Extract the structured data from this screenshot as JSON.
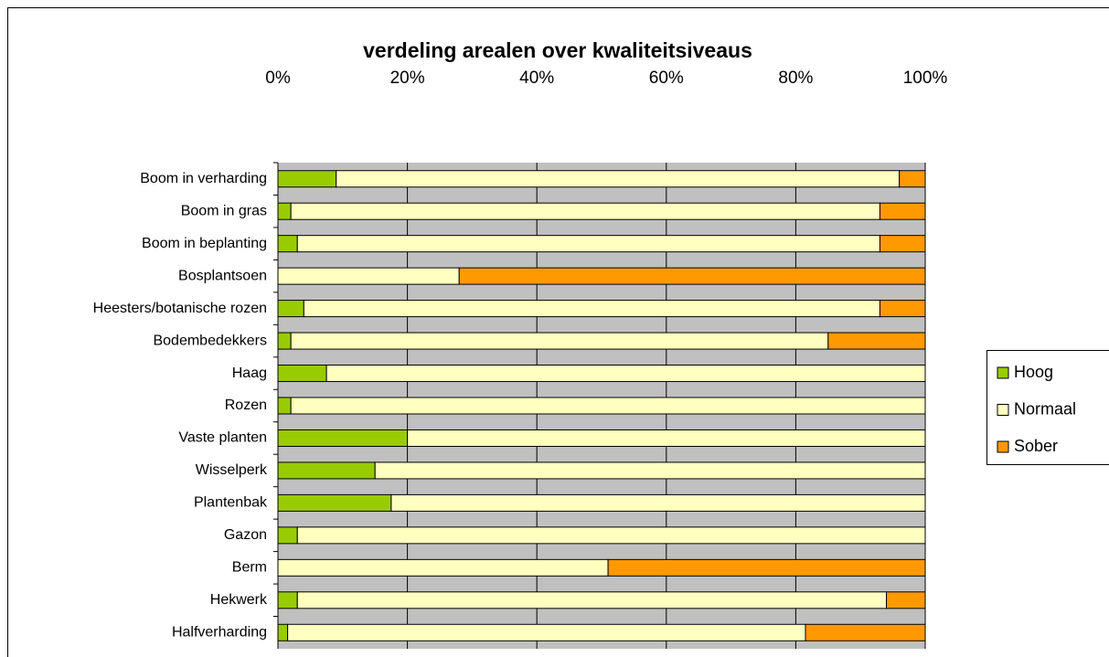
{
  "chart_data": {
    "type": "bar",
    "orientation": "horizontal",
    "stacked": true,
    "title": "verdeling arealen over kwaliteitsiveaus",
    "categories": [
      "Boom in verharding",
      "Boom in gras",
      "Boom in beplanting",
      "Bosplantsoen",
      "Heesters/botanische rozen",
      "Bodembedekkers",
      "Haag",
      "Rozen",
      "Vaste planten",
      "Wisselperk",
      "Plantenbak",
      "Gazon",
      "Berm",
      "Hekwerk",
      "Halfverharding"
    ],
    "series": [
      {
        "name": "Hoog",
        "color": "#99cc00",
        "values": [
          9,
          2,
          3,
          0,
          4,
          2,
          7.5,
          2,
          20,
          15,
          17.5,
          3,
          0,
          3,
          1.5
        ]
      },
      {
        "name": "Normaal",
        "color": "#ffffc0",
        "values": [
          87,
          91,
          90,
          28,
          89,
          83,
          92.5,
          98,
          80,
          85,
          82.5,
          97,
          51,
          91,
          80
        ]
      },
      {
        "name": "Sober",
        "color": "#ff9900",
        "values": [
          4,
          7,
          7,
          72,
          7,
          15,
          0,
          0,
          0,
          0,
          0,
          0,
          49,
          6,
          18.5
        ]
      }
    ],
    "xlim": [
      0,
      100
    ],
    "xticks": [
      {
        "value": 0,
        "label": "0%"
      },
      {
        "value": 20,
        "label": "20%"
      },
      {
        "value": 40,
        "label": "40%"
      },
      {
        "value": 60,
        "label": "60%"
      },
      {
        "value": 80,
        "label": "80%"
      },
      {
        "value": 100,
        "label": "100%"
      }
    ],
    "grid": true,
    "legend": "right"
  }
}
